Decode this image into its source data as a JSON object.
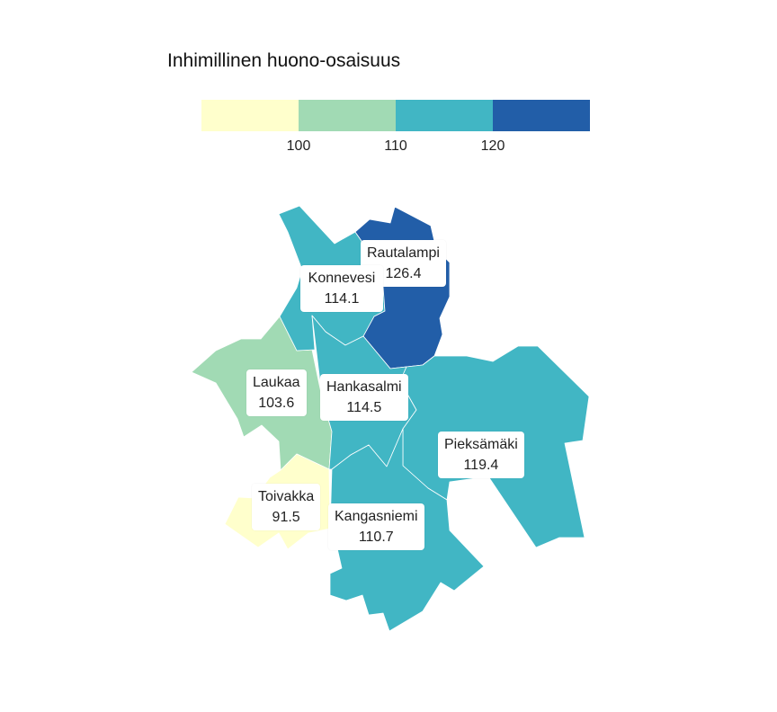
{
  "title": "Inhimillinen huono-osaisuus",
  "legend": {
    "bins": [
      {
        "color": "#ffffcc"
      },
      {
        "color": "#a1dab4"
      },
      {
        "color": "#41b6c4"
      },
      {
        "color": "#225ea8"
      }
    ],
    "ticks": [
      "100",
      "110",
      "120"
    ]
  },
  "regions": [
    {
      "name": "Rautalampi",
      "value": "126.4",
      "color": "#225ea8"
    },
    {
      "name": "Konnevesi",
      "value": "114.1",
      "color": "#41b6c4"
    },
    {
      "name": "Laukaa",
      "value": "103.6",
      "color": "#a1dab4"
    },
    {
      "name": "Hankasalmi",
      "value": "114.5",
      "color": "#41b6c4"
    },
    {
      "name": "Pieksämäki",
      "value": "119.4",
      "color": "#41b6c4"
    },
    {
      "name": "Toivakka",
      "value": "91.5",
      "color": "#ffffcc"
    },
    {
      "name": "Kangasniemi",
      "value": "110.7",
      "color": "#41b6c4"
    }
  ]
}
